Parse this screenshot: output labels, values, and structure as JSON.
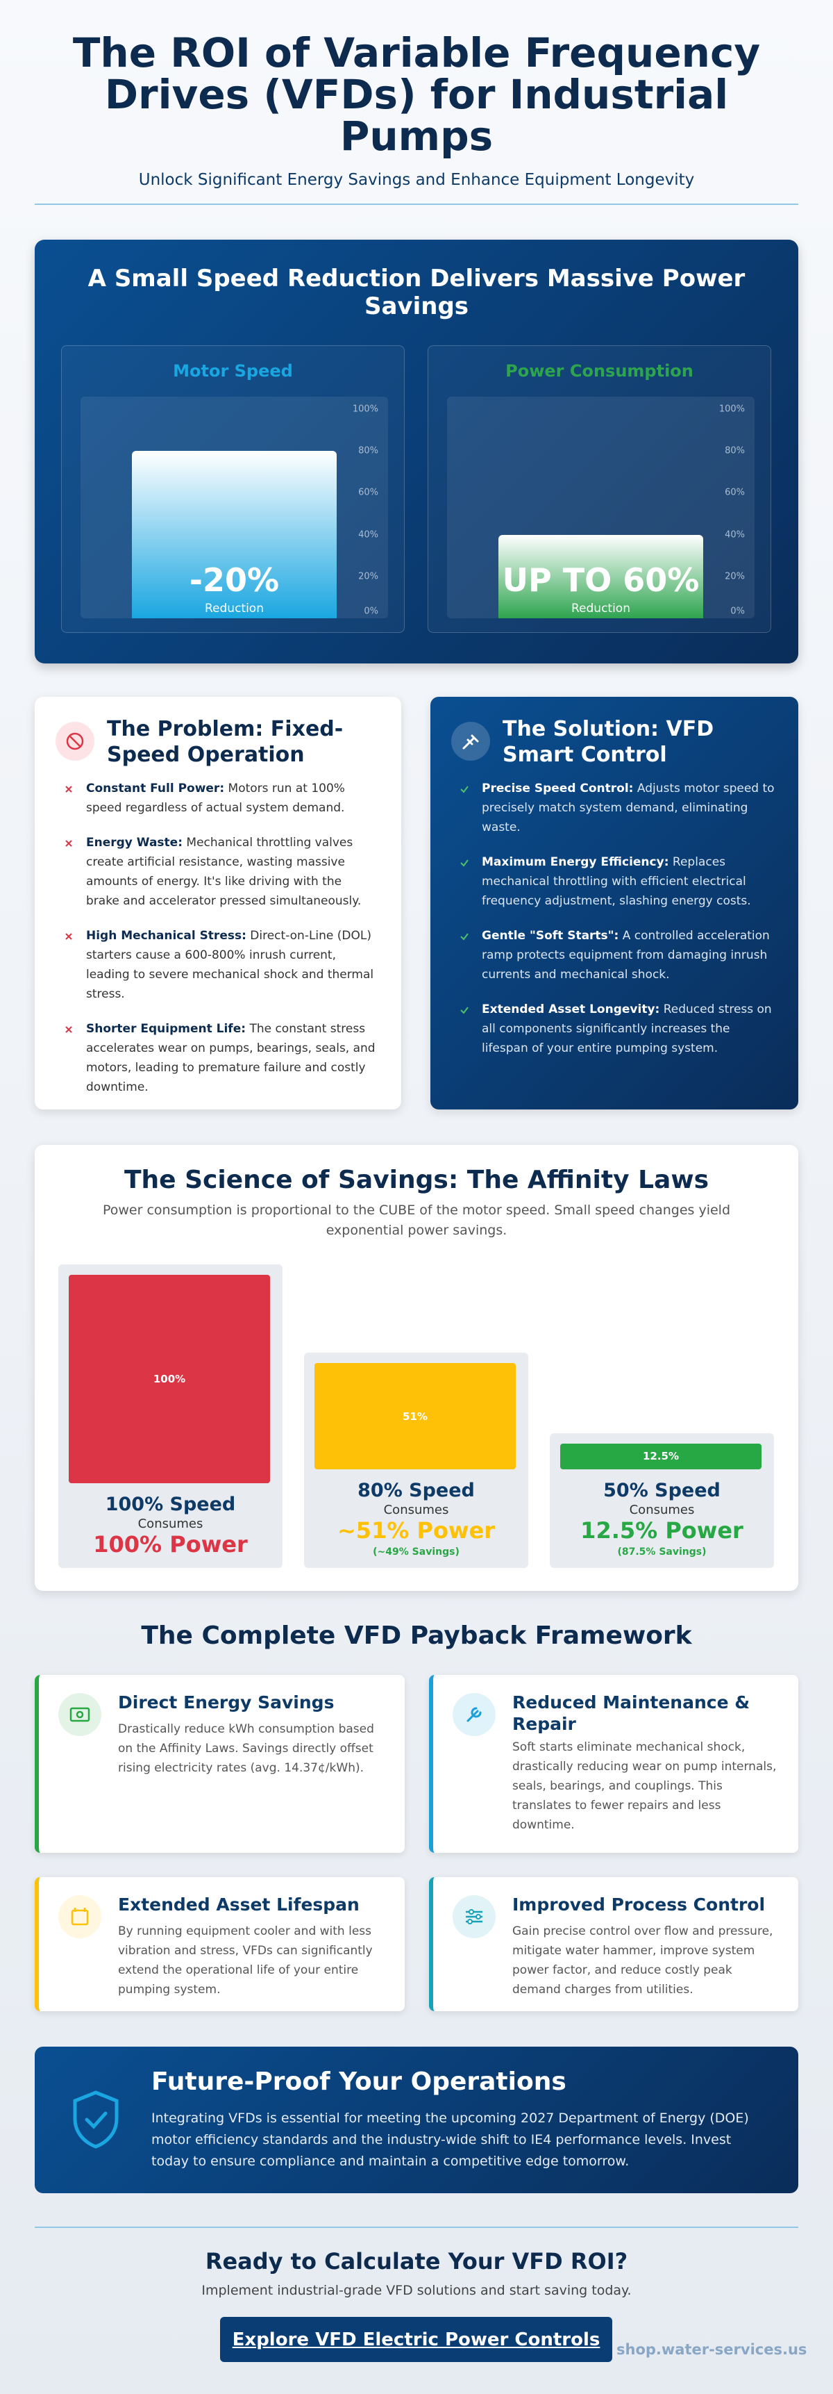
{
  "header": {
    "title": "The ROI of Variable Frequency Drives (VFDs) for Industrial Pumps",
    "subtitle": "Unlock Significant Energy Savings and Enhance Equipment Longevity"
  },
  "speed_section": {
    "title": "A Small Speed Reduction Delivers Massive Power Savings",
    "scale": [
      {
        "value": 100,
        "label": "100%"
      },
      {
        "value": 80,
        "label": "80%"
      },
      {
        "value": 60,
        "label": "60%"
      },
      {
        "value": 40,
        "label": "40%"
      },
      {
        "value": 20,
        "label": "20%"
      },
      {
        "value": 0,
        "label": "0%"
      }
    ],
    "panels": [
      {
        "title": "Motor Speed",
        "level": 80,
        "big_label": "-20%",
        "caption": "Reduction",
        "color": "#1aa6e0"
      },
      {
        "title": "Power Consumption",
        "level": 40,
        "big_label": "UP TO 60%",
        "caption": "Reduction",
        "color": "#2ea44f"
      }
    ]
  },
  "problem": {
    "title": "The Problem: Fixed-Speed Operation",
    "items": [
      {
        "term": "Constant Full Power:",
        "text": "Motors run at 100% speed regardless of actual system demand."
      },
      {
        "term": "Energy Waste:",
        "text": "Mechanical throttling valves create artificial resistance, wasting massive amounts of energy. It's like driving with the brake and accelerator pressed simultaneously."
      },
      {
        "term": "High Mechanical Stress:",
        "text": "Direct-on-Line (DOL) starters cause a 600-800% inrush current, leading to severe mechanical shock and thermal stress."
      },
      {
        "term": "Shorter Equipment Life:",
        "text": "The constant stress accelerates wear on pumps, bearings, seals, and motors, leading to premature failure and costly downtime."
      }
    ]
  },
  "solution": {
    "title": "The Solution: VFD Smart Control",
    "items": [
      {
        "term": "Precise Speed Control:",
        "text": "Adjusts motor speed to precisely match system demand, eliminating waste."
      },
      {
        "term": "Maximum Energy Efficiency:",
        "text": "Replaces mechanical throttling with efficient electrical frequency adjustment, slashing energy costs."
      },
      {
        "term": "Gentle \"Soft Starts\":",
        "text": "A controlled acceleration ramp protects equipment from damaging inrush currents and mechanical shock."
      },
      {
        "term": "Extended Asset Longevity:",
        "text": "Reduced stress on all components significantly increases the lifespan of your entire pumping system."
      }
    ]
  },
  "affinity": {
    "title": "The Science of Savings: The Affinity Laws",
    "subtitle": "Power consumption is proportional to the CUBE of the motor speed. Small speed changes yield exponential power savings.",
    "bars": [
      {
        "value": 100,
        "label": "100%",
        "speed": "100% Speed",
        "consumes": "Consumes",
        "power": "100% Power",
        "color": "#dc3545"
      },
      {
        "value": 51,
        "label": "51%",
        "speed": "80% Speed",
        "consumes": "Consumes",
        "power": "~51% Power",
        "savings": "(~49% Savings)",
        "color": "#ffc107"
      },
      {
        "value": 12.5,
        "label": "12.5%",
        "speed": "50% Speed",
        "consumes": "Consumes",
        "power": "12.5% Power",
        "savings": "(87.5% Savings)",
        "color": "#28a745"
      }
    ]
  },
  "framework": {
    "title": "The Complete VFD Payback Framework",
    "cards": [
      {
        "title": "Direct Energy Savings",
        "text": "Drastically reduce kWh consumption based on the Affinity Laws. Savings directly offset rising electricity rates (avg. 14.37¢/kWh).",
        "color": "#28a745"
      },
      {
        "title": "Reduced Maintenance & Repair",
        "text": "Soft starts eliminate mechanical shock, drastically reducing wear on pump internals, seals, bearings, and couplings. This translates to fewer repairs and less downtime.",
        "color": "#1a9fd8"
      },
      {
        "title": "Extended Asset Lifespan",
        "text": "By running equipment cooler and with less vibration and stress, VFDs can significantly extend the operational life of your entire pumping system.",
        "color": "#ffc107"
      },
      {
        "title": "Improved Process Control",
        "text": "Gain precise control over flow and pressure, mitigate water hammer, improve system power factor, and reduce costly peak demand charges from utilities.",
        "color": "#17a2b8"
      }
    ]
  },
  "future": {
    "title": "Future-Proof Your Operations",
    "text": "Integrating VFDs is essential for meeting the upcoming 2027 Department of Energy (DOE) motor efficiency standards and the industry-wide shift to IE4 performance levels. Invest today to ensure compliance and maintain a competitive edge tomorrow."
  },
  "cta": {
    "title": "Ready to Calculate Your VFD ROI?",
    "text": "Implement industrial-grade VFD solutions and start saving today.",
    "button": "Explore VFD Electric Power Controls",
    "site": "shop.water-services.us"
  }
}
